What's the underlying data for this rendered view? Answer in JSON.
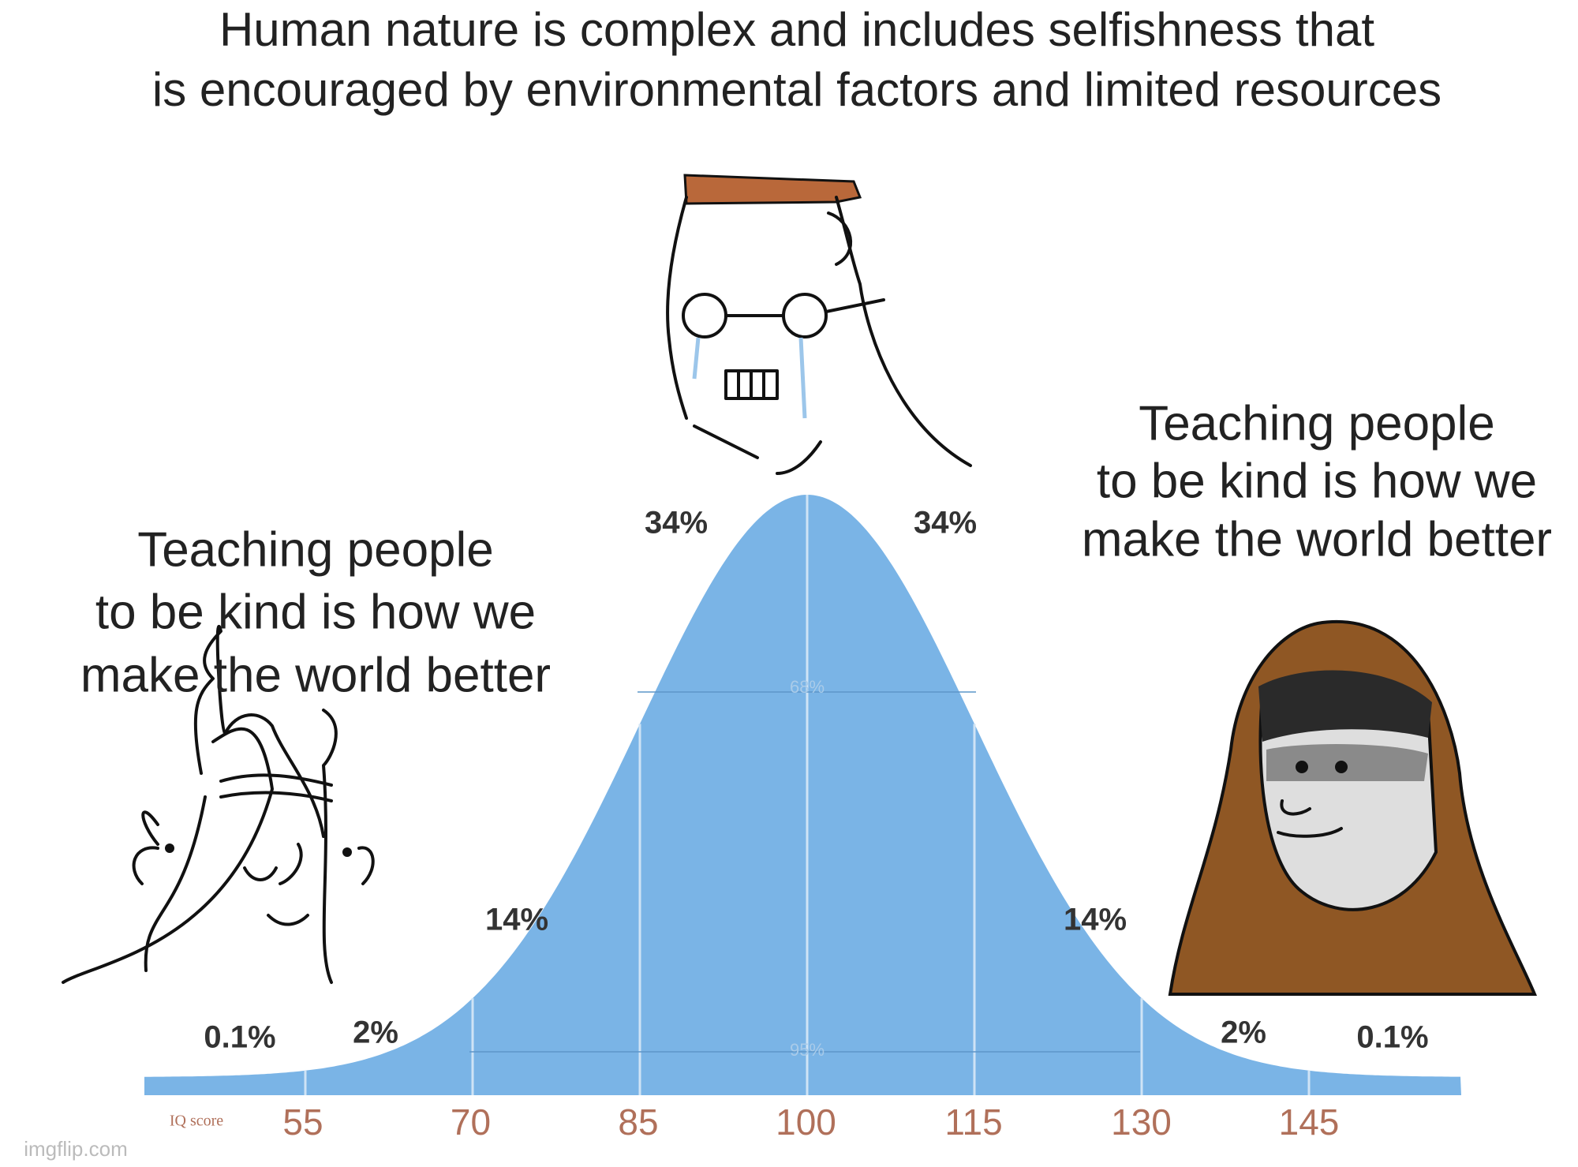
{
  "title": {
    "lines": [
      "Human nature is complex and includes selfishness that",
      "is encouraged by environmental factors and limited resources"
    ]
  },
  "left_caption": {
    "lines": [
      "Teaching people",
      "to be kind is how we",
      "make the world better"
    ]
  },
  "right_caption": {
    "lines": [
      "Teaching people",
      "to be kind is how we",
      "make the world better"
    ]
  },
  "curve": {
    "segment_labels": [
      "0.1%",
      "2%",
      "14%",
      "34%",
      "34%",
      "14%",
      "2%",
      "0.1%"
    ],
    "inner_labels": [
      "68%",
      "95%"
    ],
    "axis_label": "IQ score",
    "ticks": [
      55,
      70,
      85,
      100,
      115,
      130,
      145
    ]
  },
  "watermark": "imgflip.com"
}
